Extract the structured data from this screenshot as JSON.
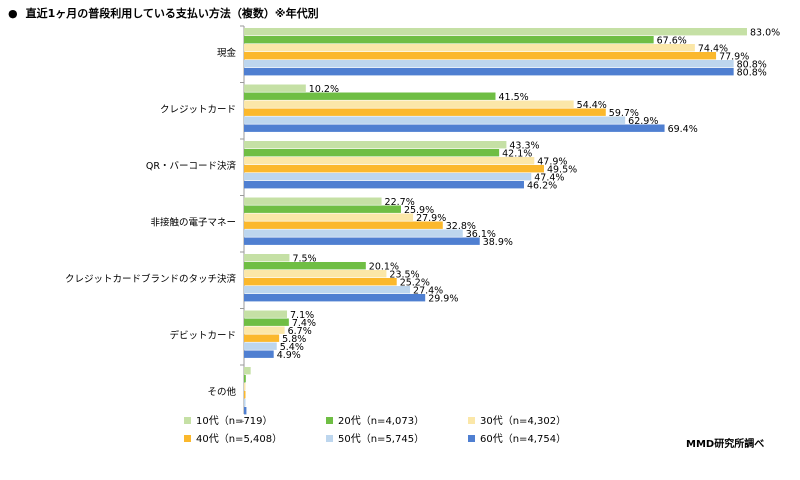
{
  "title": {
    "bullet": "●",
    "text": "直近1ヶ月の普段利用している支払い方法（複数）※年代別"
  },
  "credit": "MMD研究所調べ",
  "chart_data": {
    "type": "bar",
    "orientation": "horizontal",
    "categories": [
      "現金",
      "クレジットカード",
      "QR・バーコード決済",
      "非接触の電子マネー",
      "クレジットカードブランドのタッチ決済",
      "デビットカード",
      "その他"
    ],
    "series": [
      {
        "name": "10代（n=719）",
        "color": "#c5e0a5",
        "values": [
          83.0,
          10.2,
          43.3,
          22.7,
          7.5,
          7.1,
          1.1
        ]
      },
      {
        "name": "20代（n=4,073）",
        "color": "#6fbe44",
        "values": [
          67.6,
          41.5,
          42.1,
          25.9,
          20.1,
          7.4,
          0.3
        ]
      },
      {
        "name": "30代（n=4,302）",
        "color": "#fbe7a8",
        "values": [
          74.4,
          54.4,
          47.9,
          27.9,
          23.5,
          6.7,
          0.1
        ]
      },
      {
        "name": "40代（n=5,408）",
        "color": "#fbb82c",
        "values": [
          77.9,
          59.7,
          49.5,
          32.8,
          25.2,
          5.8,
          0.2
        ]
      },
      {
        "name": "50代（n=5,745）",
        "color": "#bdd6ee",
        "values": [
          80.8,
          62.9,
          47.4,
          36.1,
          27.4,
          5.4,
          0.2
        ]
      },
      {
        "name": "60代（n=4,754）",
        "color": "#4f7fd1",
        "values": [
          80.8,
          69.4,
          46.2,
          38.9,
          29.9,
          4.9,
          0.4
        ]
      }
    ],
    "value_suffix": "%",
    "xlim": [
      0,
      100
    ],
    "grid": false,
    "legend_position": "bottom",
    "legend_columns": 3
  }
}
